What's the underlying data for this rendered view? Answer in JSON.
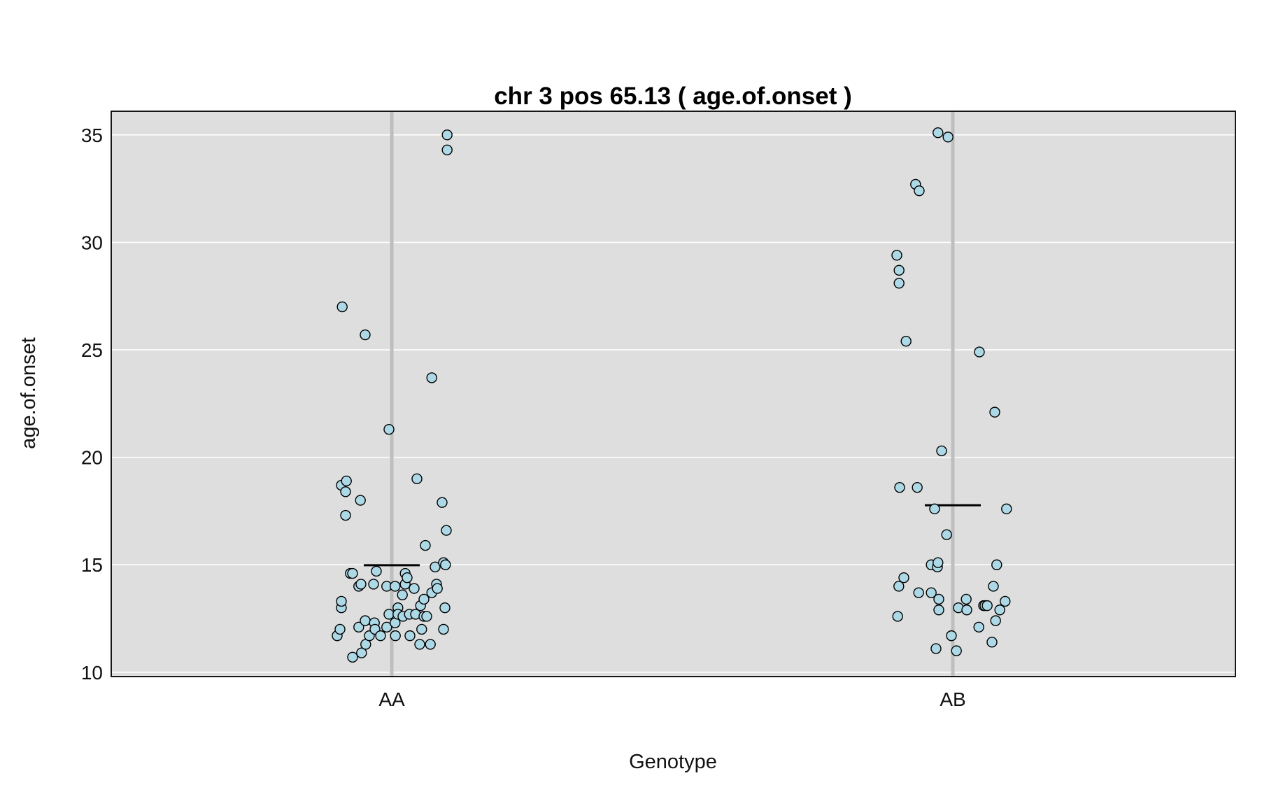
{
  "chart_data": {
    "type": "scatter",
    "title": "chr 3 pos 65.13 ( age.of.onset )",
    "xlabel": "Genotype",
    "ylabel": "age.of.onset",
    "categories": [
      "AA",
      "AB"
    ],
    "yticks": [
      10,
      15,
      20,
      25,
      30,
      35
    ],
    "ylim": [
      9.8,
      36.1
    ],
    "grid": true,
    "colors": {
      "panel_bg": "#dedede",
      "gridline": "#ffffff",
      "category_line": "#bebebe",
      "point_fill": "#add8e6",
      "point_stroke": "#000000",
      "mean_line": "#000000"
    },
    "series": [
      {
        "category": "AA",
        "mean": 14.98,
        "points": [
          [
            -0.195,
            11.7
          ],
          [
            -0.185,
            12.0
          ],
          [
            -0.18,
            18.7
          ],
          [
            -0.18,
            13.0
          ],
          [
            -0.18,
            13.3
          ],
          [
            -0.177,
            27.0
          ],
          [
            -0.165,
            18.4
          ],
          [
            -0.165,
            17.3
          ],
          [
            -0.162,
            18.9
          ],
          [
            -0.148,
            14.6
          ],
          [
            -0.14,
            14.6
          ],
          [
            -0.14,
            10.7
          ],
          [
            -0.118,
            14.0
          ],
          [
            -0.118,
            12.1
          ],
          [
            -0.112,
            18.0
          ],
          [
            -0.11,
            14.1
          ],
          [
            -0.108,
            10.9
          ],
          [
            -0.095,
            25.7
          ],
          [
            -0.095,
            12.4
          ],
          [
            -0.093,
            11.3
          ],
          [
            -0.08,
            11.7
          ],
          [
            -0.065,
            14.1
          ],
          [
            -0.062,
            12.3
          ],
          [
            -0.06,
            12.0
          ],
          [
            -0.055,
            14.7
          ],
          [
            -0.04,
            11.7
          ],
          [
            -0.018,
            14.0
          ],
          [
            -0.018,
            12.1
          ],
          [
            -0.01,
            21.3
          ],
          [
            -0.01,
            12.7
          ],
          [
            0.012,
            14.0
          ],
          [
            0.012,
            12.3
          ],
          [
            0.013,
            11.7
          ],
          [
            0.022,
            13.0
          ],
          [
            0.022,
            12.7
          ],
          [
            0.038,
            13.6
          ],
          [
            0.04,
            12.6
          ],
          [
            0.048,
            14.6
          ],
          [
            0.048,
            14.1
          ],
          [
            0.055,
            14.4
          ],
          [
            0.063,
            12.7
          ],
          [
            0.065,
            11.7
          ],
          [
            0.08,
            13.9
          ],
          [
            0.085,
            12.7
          ],
          [
            0.09,
            19.0
          ],
          [
            0.1,
            11.3
          ],
          [
            0.103,
            13.1
          ],
          [
            0.107,
            12.0
          ],
          [
            0.115,
            12.6
          ],
          [
            0.115,
            13.4
          ],
          [
            0.12,
            15.9
          ],
          [
            0.125,
            12.6
          ],
          [
            0.138,
            11.3
          ],
          [
            0.143,
            23.7
          ],
          [
            0.143,
            13.7
          ],
          [
            0.155,
            14.9
          ],
          [
            0.16,
            14.1
          ],
          [
            0.163,
            13.9
          ],
          [
            0.18,
            17.9
          ],
          [
            0.185,
            15.1
          ],
          [
            0.185,
            12.0
          ],
          [
            0.19,
            13.0
          ],
          [
            0.192,
            15.0
          ],
          [
            0.195,
            16.6
          ],
          [
            0.198,
            35.0
          ],
          [
            0.198,
            34.3
          ]
        ]
      },
      {
        "category": "AB",
        "mean": 17.77,
        "points": [
          [
            -0.2,
            29.4
          ],
          [
            -0.197,
            12.6
          ],
          [
            -0.193,
            14.0
          ],
          [
            -0.192,
            28.7
          ],
          [
            -0.192,
            28.1
          ],
          [
            -0.19,
            18.6
          ],
          [
            -0.175,
            14.4
          ],
          [
            -0.167,
            25.4
          ],
          [
            -0.133,
            32.7
          ],
          [
            -0.127,
            18.6
          ],
          [
            -0.122,
            13.7
          ],
          [
            -0.12,
            32.4
          ],
          [
            -0.077,
            15.0
          ],
          [
            -0.077,
            13.7
          ],
          [
            -0.065,
            17.6
          ],
          [
            -0.06,
            11.1
          ],
          [
            -0.055,
            14.9
          ],
          [
            -0.053,
            15.1
          ],
          [
            -0.053,
            35.1
          ],
          [
            -0.05,
            13.4
          ],
          [
            -0.05,
            12.9
          ],
          [
            -0.04,
            20.3
          ],
          [
            -0.022,
            16.4
          ],
          [
            -0.017,
            34.9
          ],
          [
            -0.005,
            11.7
          ],
          [
            0.013,
            11.0
          ],
          [
            0.02,
            13.0
          ],
          [
            0.048,
            13.4
          ],
          [
            0.05,
            12.9
          ],
          [
            0.093,
            12.1
          ],
          [
            0.095,
            24.9
          ],
          [
            0.11,
            13.1
          ],
          [
            0.115,
            13.1
          ],
          [
            0.123,
            13.1
          ],
          [
            0.14,
            11.4
          ],
          [
            0.145,
            14.0
          ],
          [
            0.15,
            22.1
          ],
          [
            0.153,
            12.4
          ],
          [
            0.157,
            15.0
          ],
          [
            0.168,
            12.9
          ],
          [
            0.187,
            13.3
          ],
          [
            0.192,
            17.6
          ]
        ]
      }
    ]
  }
}
